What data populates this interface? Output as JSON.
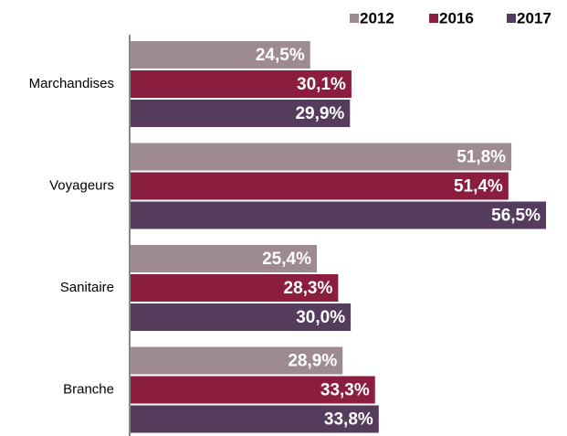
{
  "chart_data": {
    "type": "barh",
    "categories": [
      "Marchandises",
      "Voyageurs",
      "Sanitaire",
      "Branche"
    ],
    "series": [
      {
        "name": "2012",
        "color": "#9e8b8f",
        "values": [
          24.5,
          51.8,
          25.4,
          28.9
        ],
        "value_labels": [
          "24,5%",
          "51,8%",
          "25,4%",
          "28,9%"
        ]
      },
      {
        "name": "2016",
        "color": "#8b1e3f",
        "values": [
          30.1,
          51.4,
          28.3,
          33.3
        ],
        "value_labels": [
          "30,1%",
          "51,4%",
          "28,3%",
          "33,3%"
        ]
      },
      {
        "name": "2017",
        "color": "#563c5c",
        "values": [
          29.9,
          56.5,
          30.0,
          33.8
        ],
        "value_labels": [
          "29,9%",
          "56,5%",
          "30,0%",
          "33,8%"
        ]
      }
    ],
    "legend": "top-right"
  }
}
